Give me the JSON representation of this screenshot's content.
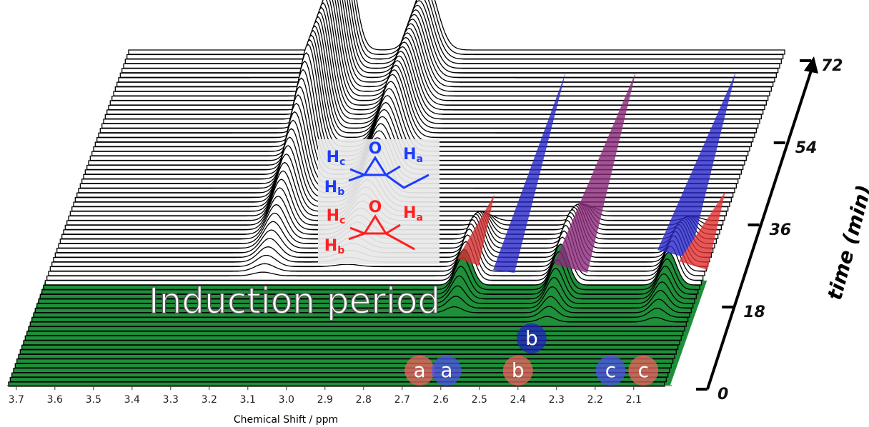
{
  "chart_data": {
    "type": "waterfall",
    "xlabel": "Chemical Shift / ppm",
    "xlim": [
      3.72,
      2.02
    ],
    "xticks": [
      3.7,
      3.6,
      3.5,
      3.4,
      3.3,
      3.2,
      3.1,
      {
        "value": 3,
        "label": "3.0"
      },
      2.9,
      2.8,
      2.7,
      2.6,
      2.5,
      2.4,
      2.3,
      2.2,
      2.1
    ],
    "ylabel": "time (min)",
    "ylim": [
      0,
      72
    ],
    "yticks": [
      0,
      18,
      36,
      54,
      72
    ],
    "annotation": "Induction period",
    "induction_end": 22,
    "peaks": [
      {
        "ppm": 3.16,
        "width": 0.025,
        "height": 150,
        "from": 22,
        "to": 50,
        "shape": "ramp"
      },
      {
        "ppm": 2.95,
        "width": 0.03,
        "height": 95,
        "from": 24,
        "to": 52,
        "shape": "ramp"
      },
      {
        "ppm": 2.63,
        "width": 0.02,
        "height": 60,
        "from": 14,
        "to": 36,
        "shape": "pulse"
      },
      {
        "ppm": 2.38,
        "width": 0.02,
        "height": 65,
        "from": 12,
        "to": 38,
        "shape": "pulse"
      },
      {
        "ppm": 2.1,
        "width": 0.02,
        "height": 50,
        "from": 12,
        "to": 36,
        "shape": "pulse"
      }
    ],
    "labels": [
      {
        "text": "a",
        "ppm": 2.655,
        "color": "#f06060"
      },
      {
        "text": "a",
        "ppm": 2.585,
        "color": "#5050e8"
      },
      {
        "text": "b",
        "ppm": 2.4,
        "color": "#f06060"
      },
      {
        "text": "b",
        "ppm": 2.395,
        "color": "#2020c0",
        "time": 7
      },
      {
        "text": "c",
        "ppm": 2.16,
        "color": "#5050e8"
      },
      {
        "text": "c",
        "ppm": 2.075,
        "color": "#f06060"
      }
    ],
    "molecules": [
      {
        "color": "#1e3cff",
        "hc": "Hc",
        "o": "O",
        "ha": "Ha",
        "hb": "Hb"
      },
      {
        "color": "#ff2020",
        "hc": "Hc",
        "o": "O",
        "ha": "Ha",
        "hb": "Hb"
      }
    ]
  }
}
